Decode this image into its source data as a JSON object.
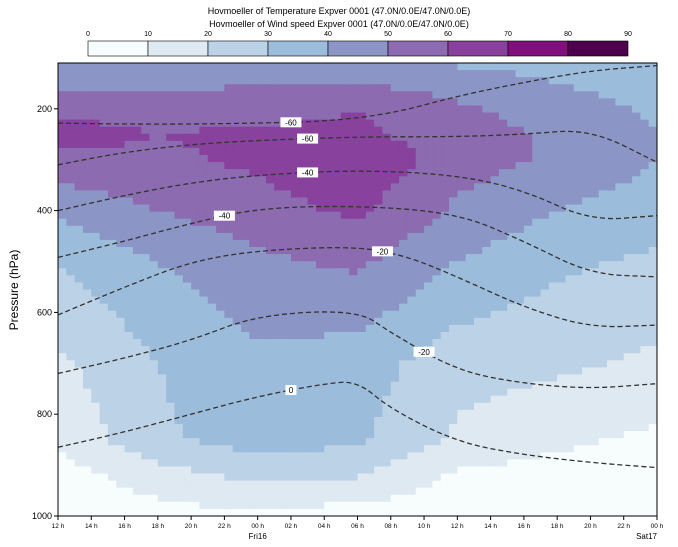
{
  "titles": [
    "Hovmoeller of Temperature Expver 0001 (47.0N/0.0E/47.0N/0.0E)",
    "Hovmoeller of Wind speed Expver 0001 (47.0N/0.0E/47.0N/0.0E)"
  ],
  "chart_data": {
    "type": "heatmap",
    "title": "Hovmoeller of Temperature Expver 0001 (47.0N/0.0E/47.0N/0.0E) / Hovmoeller of Wind speed Expver 0001 (47.0N/0.0E/47.0N/0.0E)",
    "xlabel": "",
    "ylabel": "Pressure (hPa)",
    "x_ticks": [
      "12 h",
      "14 h",
      "16 h",
      "18 h",
      "20 h",
      "22 h",
      "00 h",
      "02 h",
      "04 h",
      "06 h",
      "08 h",
      "10 h",
      "12 h",
      "14 h",
      "16 h",
      "18 h",
      "20 h",
      "22 h",
      "00 h"
    ],
    "x_day_labels": [
      {
        "index": 6,
        "label": "Fri16"
      },
      {
        "index": 18,
        "label": "Sat17"
      }
    ],
    "y_ticks": [
      200,
      400,
      600,
      800,
      1000
    ],
    "ylim": [
      1000,
      110
    ],
    "y_inverted": true,
    "colorbar": {
      "levels": [
        0,
        10,
        20,
        30,
        40,
        50,
        60,
        70,
        80,
        90
      ],
      "colors": [
        "#f7fcfd",
        "#dfe9f2",
        "#bcd2e6",
        "#9cbcdb",
        "#8c96c6",
        "#8c6bb1",
        "#88419d",
        "#810f7c",
        "#4d004b"
      ]
    },
    "wind_speed_shading": {
      "x_hours": [
        0,
        6,
        12,
        18,
        24,
        30,
        36
      ],
      "pressure_levels": [
        1000,
        925,
        850,
        700,
        500,
        400,
        300,
        250,
        200,
        150,
        120
      ],
      "values": [
        [
          2,
          6,
          8,
          5,
          3,
          2,
          1
        ],
        [
          5,
          15,
          22,
          20,
          8,
          6,
          4
        ],
        [
          12,
          28,
          35,
          32,
          18,
          12,
          8
        ],
        [
          18,
          30,
          38,
          35,
          24,
          22,
          18
        ],
        [
          30,
          40,
          48,
          52,
          40,
          32,
          28
        ],
        [
          42,
          50,
          56,
          62,
          48,
          40,
          35
        ],
        [
          58,
          58,
          62,
          68,
          55,
          48,
          40
        ],
        [
          64,
          60,
          62,
          62,
          55,
          48,
          40
        ],
        [
          58,
          55,
          56,
          60,
          52,
          45,
          38
        ],
        [
          48,
          46,
          50,
          50,
          45,
          40,
          35
        ],
        [
          42,
          42,
          44,
          45,
          40,
          38,
          34
        ]
      ]
    },
    "temperature_contours": [
      {
        "label": "0",
        "points": [
          [
            0,
            865
          ],
          [
            4,
            835
          ],
          [
            8,
            800
          ],
          [
            12,
            765
          ],
          [
            16,
            740
          ],
          [
            18,
            735
          ],
          [
            20,
            790
          ],
          [
            24,
            855
          ],
          [
            28,
            880
          ],
          [
            32,
            895
          ],
          [
            36,
            905
          ]
        ]
      },
      {
        "label": "-20",
        "points": [
          [
            0,
            720
          ],
          [
            4,
            690
          ],
          [
            8,
            655
          ],
          [
            12,
            605
          ],
          [
            18,
            595
          ],
          [
            20,
            640
          ],
          [
            24,
            715
          ],
          [
            28,
            740
          ],
          [
            32,
            750
          ],
          [
            36,
            740
          ]
        ]
      },
      {
        "label": "-20",
        "points": [
          [
            0,
            605
          ],
          [
            4,
            550
          ],
          [
            8,
            500
          ],
          [
            12,
            478
          ],
          [
            18,
            470
          ],
          [
            21,
            490
          ],
          [
            24,
            530
          ],
          [
            28,
            590
          ],
          [
            32,
            630
          ],
          [
            36,
            625
          ]
        ]
      },
      {
        "label": "-40",
        "points": [
          [
            0,
            492
          ],
          [
            4,
            460
          ],
          [
            8,
            425
          ],
          [
            12,
            395
          ],
          [
            18,
            390
          ],
          [
            24,
            405
          ],
          [
            28,
            460
          ],
          [
            32,
            525
          ],
          [
            36,
            530
          ]
        ]
      },
      {
        "label": "-40",
        "points": [
          [
            0,
            400
          ],
          [
            4,
            370
          ],
          [
            8,
            345
          ],
          [
            12,
            330
          ],
          [
            18,
            320
          ],
          [
            24,
            330
          ],
          [
            28,
            360
          ],
          [
            32,
            420
          ],
          [
            36,
            410
          ]
        ]
      },
      {
        "label": "-60",
        "points": [
          [
            0,
            310
          ],
          [
            4,
            285
          ],
          [
            8,
            270
          ],
          [
            12,
            262
          ],
          [
            18,
            255
          ],
          [
            24,
            255
          ],
          [
            28,
            250
          ],
          [
            32,
            240
          ],
          [
            36,
            305
          ]
        ]
      },
      {
        "label": "-60",
        "points": [
          [
            0,
            228
          ],
          [
            4,
            230
          ],
          [
            8,
            230
          ],
          [
            12,
            228
          ],
          [
            16,
            225
          ],
          [
            20,
            210
          ],
          [
            24,
            175
          ],
          [
            28,
            148
          ],
          [
            32,
            125
          ],
          [
            36,
            115
          ]
        ]
      }
    ]
  }
}
